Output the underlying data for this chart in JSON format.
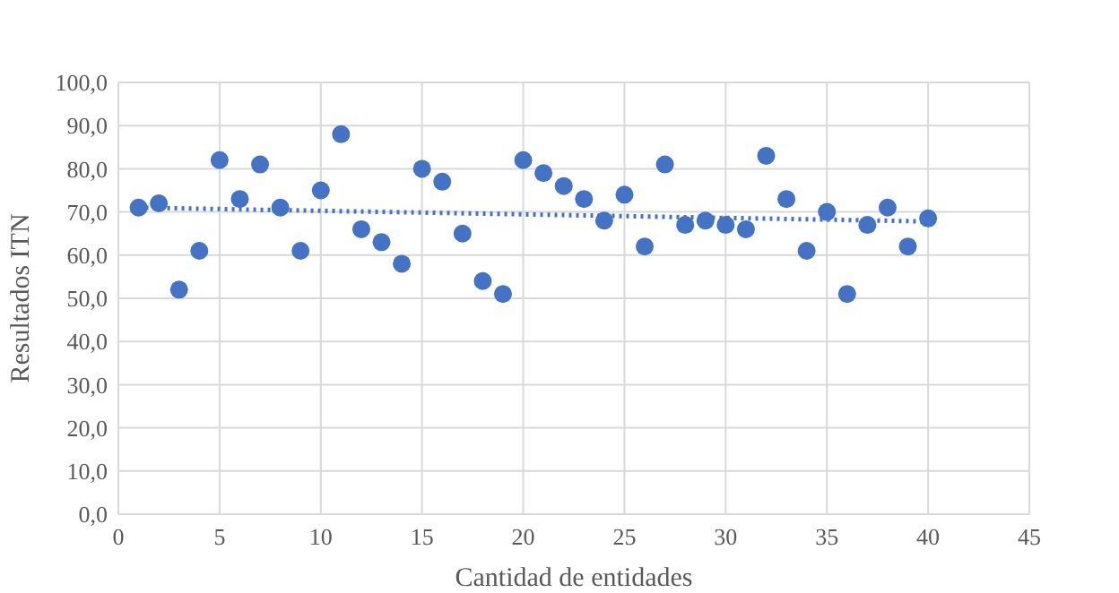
{
  "chart_data": {
    "type": "scatter",
    "xlabel": "Cantidad de entidades",
    "ylabel": "Resultados ITN",
    "xlim": [
      0,
      45
    ],
    "xticks": [
      0,
      5,
      10,
      15,
      20,
      25,
      30,
      35,
      40,
      45
    ],
    "ylim": [
      0,
      100
    ],
    "yticks": [
      {
        "value": 0,
        "label": "0,0"
      },
      {
        "value": 10,
        "label": "10,0"
      },
      {
        "value": 20,
        "label": "20,0"
      },
      {
        "value": 30,
        "label": "30,0"
      },
      {
        "value": 40,
        "label": "40,0"
      },
      {
        "value": 50,
        "label": "50,0"
      },
      {
        "value": 60,
        "label": "60,0"
      },
      {
        "value": 70,
        "label": "70,0"
      },
      {
        "value": 80,
        "label": "80,0"
      },
      {
        "value": 90,
        "label": "90,0"
      },
      {
        "value": 100,
        "label": "100,0"
      }
    ],
    "grid": true,
    "series": [
      {
        "color": "#4472c4",
        "marker": "circle",
        "x": [
          1,
          2,
          3,
          4,
          5,
          6,
          7,
          8,
          9,
          10,
          11,
          12,
          13,
          14,
          15,
          16,
          17,
          18,
          19,
          20,
          21,
          22,
          23,
          24,
          25,
          26,
          27,
          28,
          29,
          30,
          31,
          32,
          33,
          34,
          35,
          36,
          37,
          38,
          39,
          40
        ],
        "values": [
          71,
          72,
          52,
          61,
          82,
          73,
          81,
          71,
          61,
          75,
          88,
          66,
          63,
          58,
          80,
          77,
          65,
          54,
          51,
          82,
          79,
          76,
          73,
          68,
          74,
          62,
          81,
          67,
          68,
          67,
          66,
          83,
          73,
          61,
          70,
          51,
          67,
          71,
          62,
          68.5
        ]
      },
      {
        "type": "line",
        "color": "#4472c4",
        "line_style": "dotted",
        "marker": "none",
        "x": [
          1,
          40
        ],
        "values": [
          71,
          67.8
        ]
      }
    ]
  }
}
